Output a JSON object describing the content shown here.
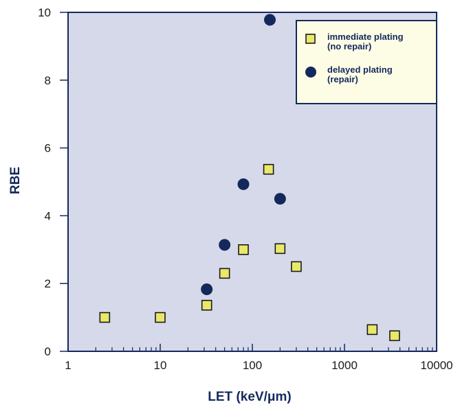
{
  "chart_data": {
    "type": "scatter",
    "title": "",
    "xlabel": "LET (keV/μm)",
    "ylabel": "RBE",
    "xscale": "log",
    "xlim": [
      1,
      10000
    ],
    "ylim": [
      0,
      10
    ],
    "x_ticks": [
      {
        "value": 1,
        "label": "1"
      },
      {
        "value": 10,
        "label": "10"
      },
      {
        "value": 100,
        "label": "100"
      },
      {
        "value": 1000,
        "label": "1000"
      },
      {
        "value": 10000,
        "label": "10000"
      }
    ],
    "y_ticks": [
      {
        "value": 0,
        "label": "0"
      },
      {
        "value": 2,
        "label": "2"
      },
      {
        "value": 4,
        "label": "4"
      },
      {
        "value": 6,
        "label": "6"
      },
      {
        "value": 8,
        "label": "8"
      },
      {
        "value": 10,
        "label": "10"
      }
    ],
    "grid": false,
    "legend_position": "top-right",
    "colors": {
      "plot_background": "#d5d9ea",
      "axis": "#14285c",
      "square_fill": "#e8e86a",
      "square_stroke": "#1a1a1a",
      "circle_fill": "#14285c",
      "legend_background": "#fdfde6"
    },
    "series": [
      {
        "name_lines": [
          "immediate plating",
          "(no repair)"
        ],
        "marker": "square",
        "points": [
          {
            "x": 2.5,
            "y": 1.0
          },
          {
            "x": 10,
            "y": 1.0
          },
          {
            "x": 32,
            "y": 1.36
          },
          {
            "x": 50,
            "y": 2.3
          },
          {
            "x": 80,
            "y": 3.0
          },
          {
            "x": 150,
            "y": 5.37
          },
          {
            "x": 200,
            "y": 3.03
          },
          {
            "x": 300,
            "y": 2.5
          },
          {
            "x": 2000,
            "y": 0.64
          },
          {
            "x": 3500,
            "y": 0.46
          }
        ]
      },
      {
        "name_lines": [
          "delayed plating",
          "(repair)"
        ],
        "marker": "circle",
        "points": [
          {
            "x": 32,
            "y": 1.83
          },
          {
            "x": 50,
            "y": 3.14
          },
          {
            "x": 80,
            "y": 4.93
          },
          {
            "x": 155,
            "y": 9.78
          },
          {
            "x": 200,
            "y": 4.5
          }
        ]
      }
    ]
  }
}
